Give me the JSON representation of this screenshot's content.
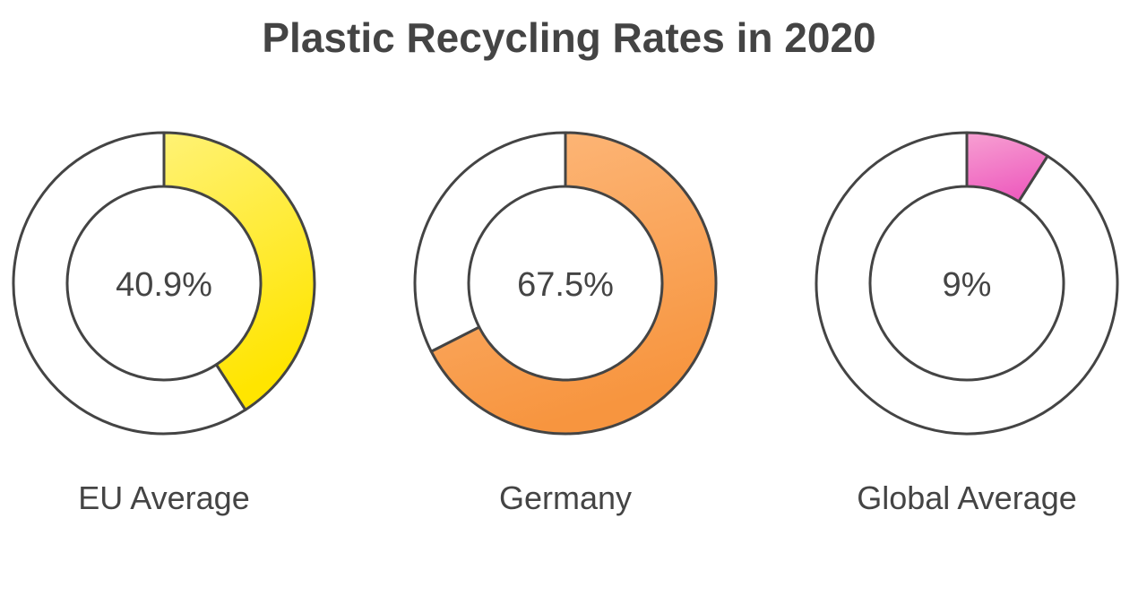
{
  "chart_data": {
    "type": "pie",
    "variant": "donut",
    "title": "Plastic Recycling Rates in 2020",
    "unit": "%",
    "max": 100,
    "items": [
      {
        "label": "EU Average",
        "value": 40.9,
        "value_label": "40.9%",
        "color_light": "#fff275",
        "color_dark": "#ffe500"
      },
      {
        "label": "Germany",
        "value": 67.5,
        "value_label": "67.5%",
        "color_light": "#fdb97d",
        "color_dark": "#f7953f"
      },
      {
        "label": "Global Average",
        "value": 9,
        "value_label": "9%",
        "color_light": "#f7a0d2",
        "color_dark": "#ee5fbf"
      }
    ]
  }
}
